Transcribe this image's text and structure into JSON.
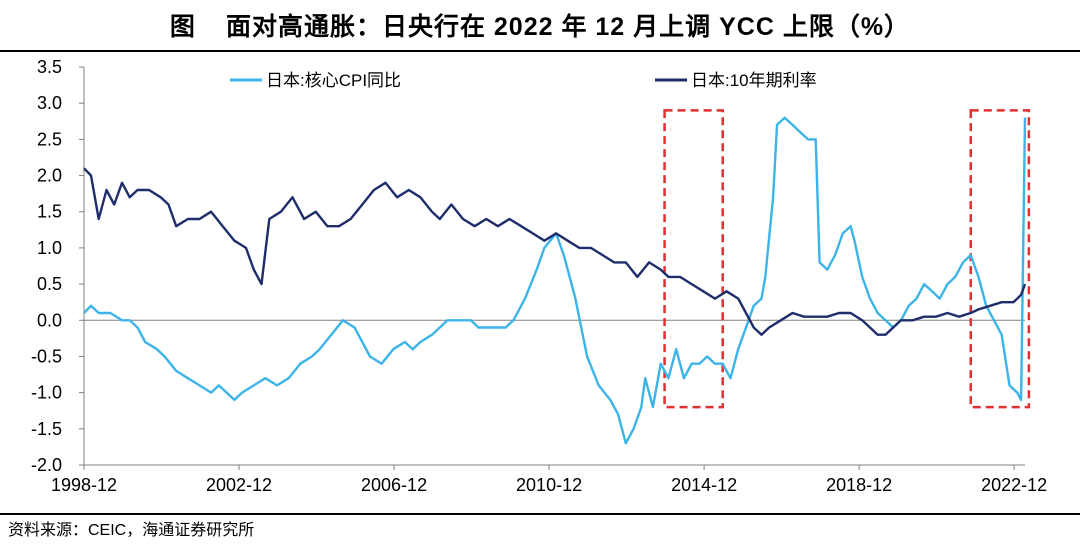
{
  "title": {
    "prefix": "图",
    "text": "面对高通胀：日央行在 2022 年 12 月上调 YCC 上限（%）"
  },
  "source": "资料来源：CEIC，海通证券研究所",
  "colors": {
    "cpi": "#3db4e8",
    "bond": "#1f2d6b",
    "highlight": "#e03030",
    "axis": "#808080"
  },
  "chart_data": {
    "type": "line",
    "xlabel": "",
    "ylabel": "",
    "ylim": [
      -2.0,
      3.5
    ],
    "xlim": [
      1998.92,
      2023.2
    ],
    "yticks": [
      "3.5",
      "3.0",
      "2.5",
      "2.0",
      "1.5",
      "1.0",
      "0.5",
      "0.0",
      "-0.5",
      "-1.0",
      "-1.5",
      "-2.0"
    ],
    "xticks": [
      {
        "label": "1998-12",
        "x": 1998.92
      },
      {
        "label": "2002-12",
        "x": 2002.92
      },
      {
        "label": "2006-12",
        "x": 2006.92
      },
      {
        "label": "2010-12",
        "x": 2010.92
      },
      {
        "label": "2014-12",
        "x": 2014.92
      },
      {
        "label": "2018-12",
        "x": 2018.92
      },
      {
        "label": "2022-12",
        "x": 2022.92
      }
    ],
    "legend": [
      {
        "name": "日本:核心CPI同比",
        "series": "cpi"
      },
      {
        "name": "日本:10年期利率",
        "series": "bond"
      }
    ],
    "highlight_boxes": [
      {
        "x0": 2013.9,
        "x1": 2015.4,
        "y0": -1.2,
        "y1": 2.9
      },
      {
        "x0": 2021.8,
        "x1": 2023.3,
        "y0": -1.2,
        "y1": 2.9
      }
    ],
    "series": [
      {
        "name": "日本:核心CPI同比",
        "key": "cpi",
        "points": [
          [
            1998.92,
            0.1
          ],
          [
            1999.1,
            0.2
          ],
          [
            1999.3,
            0.1
          ],
          [
            1999.6,
            0.1
          ],
          [
            1999.9,
            0.0
          ],
          [
            2000.1,
            0.0
          ],
          [
            2000.3,
            -0.1
          ],
          [
            2000.5,
            -0.3
          ],
          [
            2000.8,
            -0.4
          ],
          [
            2001.0,
            -0.5
          ],
          [
            2001.3,
            -0.7
          ],
          [
            2001.6,
            -0.8
          ],
          [
            2001.9,
            -0.9
          ],
          [
            2002.2,
            -1.0
          ],
          [
            2002.4,
            -0.9
          ],
          [
            2002.6,
            -1.0
          ],
          [
            2002.8,
            -1.1
          ],
          [
            2003.0,
            -1.0
          ],
          [
            2003.3,
            -0.9
          ],
          [
            2003.6,
            -0.8
          ],
          [
            2003.9,
            -0.9
          ],
          [
            2004.2,
            -0.8
          ],
          [
            2004.5,
            -0.6
          ],
          [
            2004.8,
            -0.5
          ],
          [
            2005.0,
            -0.4
          ],
          [
            2005.3,
            -0.2
          ],
          [
            2005.6,
            0.0
          ],
          [
            2005.9,
            -0.1
          ],
          [
            2006.0,
            -0.2
          ],
          [
            2006.3,
            -0.5
          ],
          [
            2006.6,
            -0.6
          ],
          [
            2006.9,
            -0.4
          ],
          [
            2007.2,
            -0.3
          ],
          [
            2007.4,
            -0.4
          ],
          [
            2007.6,
            -0.3
          ],
          [
            2007.9,
            -0.2
          ],
          [
            2008.1,
            -0.1
          ],
          [
            2008.3,
            0.0
          ],
          [
            2008.6,
            0.0
          ],
          [
            2008.9,
            0.0
          ],
          [
            2009.1,
            -0.1
          ],
          [
            2009.4,
            -0.1
          ],
          [
            2009.8,
            -0.1
          ],
          [
            2010.0,
            0.0
          ],
          [
            2010.3,
            0.3
          ],
          [
            2010.6,
            0.7
          ],
          [
            2010.8,
            1.0
          ],
          [
            2011.1,
            1.2
          ],
          [
            2011.3,
            0.9
          ],
          [
            2011.6,
            0.3
          ],
          [
            2011.9,
            -0.5
          ],
          [
            2012.2,
            -0.9
          ],
          [
            2012.5,
            -1.1
          ],
          [
            2012.7,
            -1.3
          ],
          [
            2012.9,
            -1.7
          ],
          [
            2013.1,
            -1.5
          ],
          [
            2013.3,
            -1.2
          ],
          [
            2013.4,
            -0.8
          ],
          [
            2013.6,
            -1.2
          ],
          [
            2013.8,
            -0.6
          ],
          [
            2014.0,
            -0.8
          ],
          [
            2014.2,
            -0.4
          ],
          [
            2014.4,
            -0.8
          ],
          [
            2014.6,
            -0.6
          ],
          [
            2014.8,
            -0.6
          ],
          [
            2015.0,
            -0.5
          ],
          [
            2015.2,
            -0.6
          ],
          [
            2015.4,
            -0.6
          ],
          [
            2015.6,
            -0.8
          ],
          [
            2015.8,
            -0.4
          ],
          [
            2016.0,
            -0.1
          ],
          [
            2016.2,
            0.2
          ],
          [
            2016.4,
            0.3
          ],
          [
            2016.5,
            0.6
          ],
          [
            2016.7,
            1.7
          ],
          [
            2016.8,
            2.7
          ],
          [
            2017.0,
            2.8
          ],
          [
            2017.2,
            2.7
          ],
          [
            2017.4,
            2.6
          ],
          [
            2017.6,
            2.5
          ],
          [
            2017.8,
            2.5
          ],
          [
            2017.9,
            0.8
          ],
          [
            2018.1,
            0.7
          ],
          [
            2018.3,
            0.9
          ],
          [
            2018.5,
            1.2
          ],
          [
            2018.7,
            1.3
          ],
          [
            2018.8,
            1.1
          ],
          [
            2019.0,
            0.6
          ],
          [
            2019.2,
            0.3
          ],
          [
            2019.4,
            0.1
          ],
          [
            2019.6,
            0.0
          ],
          [
            2019.8,
            -0.1
          ],
          [
            2020.0,
            0.0
          ],
          [
            2020.2,
            0.2
          ],
          [
            2020.4,
            0.3
          ],
          [
            2020.6,
            0.5
          ],
          [
            2020.8,
            0.4
          ],
          [
            2021.0,
            0.3
          ],
          [
            2021.2,
            0.5
          ],
          [
            2021.4,
            0.6
          ],
          [
            2021.6,
            0.8
          ],
          [
            2021.8,
            0.9
          ],
          [
            2022.0,
            0.6
          ],
          [
            2022.2,
            0.2
          ],
          [
            2022.4,
            0.0
          ],
          [
            2022.6,
            -0.2
          ],
          [
            2022.8,
            -0.9
          ],
          [
            2023.0,
            -1.0
          ],
          [
            2023.1,
            -1.1
          ],
          [
            2023.2,
            2.8
          ]
        ]
      },
      {
        "name": "日本:10年期利率",
        "key": "bond",
        "points": [
          [
            1998.92,
            2.1
          ],
          [
            1999.1,
            2.0
          ],
          [
            1999.3,
            1.4
          ],
          [
            1999.5,
            1.8
          ],
          [
            1999.7,
            1.6
          ],
          [
            1999.9,
            1.9
          ],
          [
            2000.1,
            1.7
          ],
          [
            2000.3,
            1.8
          ],
          [
            2000.6,
            1.8
          ],
          [
            2000.9,
            1.7
          ],
          [
            2001.1,
            1.6
          ],
          [
            2001.3,
            1.3
          ],
          [
            2001.6,
            1.4
          ],
          [
            2001.9,
            1.4
          ],
          [
            2002.2,
            1.5
          ],
          [
            2002.5,
            1.3
          ],
          [
            2002.8,
            1.1
          ],
          [
            2003.1,
            1.0
          ],
          [
            2003.3,
            0.7
          ],
          [
            2003.5,
            0.5
          ],
          [
            2003.7,
            1.4
          ],
          [
            2004.0,
            1.5
          ],
          [
            2004.3,
            1.7
          ],
          [
            2004.6,
            1.4
          ],
          [
            2004.9,
            1.5
          ],
          [
            2005.2,
            1.3
          ],
          [
            2005.5,
            1.3
          ],
          [
            2005.8,
            1.4
          ],
          [
            2006.1,
            1.6
          ],
          [
            2006.4,
            1.8
          ],
          [
            2006.7,
            1.9
          ],
          [
            2007.0,
            1.7
          ],
          [
            2007.3,
            1.8
          ],
          [
            2007.6,
            1.7
          ],
          [
            2007.9,
            1.5
          ],
          [
            2008.1,
            1.4
          ],
          [
            2008.4,
            1.6
          ],
          [
            2008.7,
            1.4
          ],
          [
            2009.0,
            1.3
          ],
          [
            2009.3,
            1.4
          ],
          [
            2009.6,
            1.3
          ],
          [
            2009.9,
            1.4
          ],
          [
            2010.2,
            1.3
          ],
          [
            2010.5,
            1.2
          ],
          [
            2010.8,
            1.1
          ],
          [
            2011.1,
            1.2
          ],
          [
            2011.4,
            1.1
          ],
          [
            2011.7,
            1.0
          ],
          [
            2012.0,
            1.0
          ],
          [
            2012.3,
            0.9
          ],
          [
            2012.6,
            0.8
          ],
          [
            2012.9,
            0.8
          ],
          [
            2013.2,
            0.6
          ],
          [
            2013.5,
            0.8
          ],
          [
            2013.8,
            0.7
          ],
          [
            2014.0,
            0.6
          ],
          [
            2014.3,
            0.6
          ],
          [
            2014.6,
            0.5
          ],
          [
            2014.9,
            0.4
          ],
          [
            2015.2,
            0.3
          ],
          [
            2015.5,
            0.4
          ],
          [
            2015.8,
            0.3
          ],
          [
            2016.0,
            0.1
          ],
          [
            2016.2,
            -0.1
          ],
          [
            2016.4,
            -0.2
          ],
          [
            2016.6,
            -0.1
          ],
          [
            2016.9,
            0.0
          ],
          [
            2017.2,
            0.1
          ],
          [
            2017.5,
            0.05
          ],
          [
            2017.8,
            0.05
          ],
          [
            2018.1,
            0.05
          ],
          [
            2018.4,
            0.1
          ],
          [
            2018.7,
            0.1
          ],
          [
            2019.0,
            0.0
          ],
          [
            2019.2,
            -0.1
          ],
          [
            2019.4,
            -0.2
          ],
          [
            2019.6,
            -0.2
          ],
          [
            2019.8,
            -0.1
          ],
          [
            2020.0,
            0.0
          ],
          [
            2020.3,
            0.0
          ],
          [
            2020.6,
            0.05
          ],
          [
            2020.9,
            0.05
          ],
          [
            2021.2,
            0.1
          ],
          [
            2021.5,
            0.05
          ],
          [
            2021.8,
            0.1
          ],
          [
            2022.0,
            0.15
          ],
          [
            2022.3,
            0.2
          ],
          [
            2022.6,
            0.25
          ],
          [
            2022.9,
            0.25
          ],
          [
            2023.0,
            0.3
          ],
          [
            2023.1,
            0.35
          ],
          [
            2023.2,
            0.5
          ]
        ]
      }
    ]
  }
}
